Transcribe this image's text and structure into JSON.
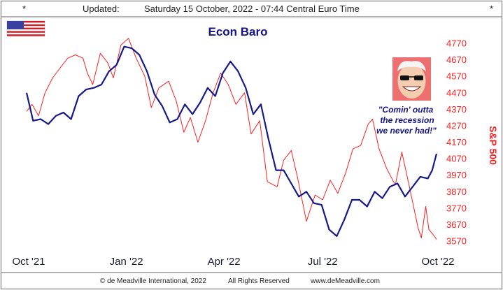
{
  "header": {
    "left_mark": "*",
    "updated_label": "Updated:",
    "timestamp": "Saturday 15 October, 2022 - 07:44 Central Euro Time",
    "right_mark": "*"
  },
  "footer": {
    "copyright": "© de Meadville International, 2022",
    "rights": "All Rights Reserved",
    "website": "www.deMeadville.com"
  },
  "flag_icon": "us-flag-icon",
  "avatar_icon": "cartoon-face-sunglasses-icon",
  "quote": {
    "line1": "\"Comin' outta",
    "line2": "the recession",
    "line3": "we never had!\""
  },
  "colors": {
    "baro": "#141a8c",
    "sp500": "#ff1f1f",
    "title": "#13148a",
    "frame": "#9a9a9a"
  },
  "chart_data": {
    "type": "line",
    "title": "Econ Baro",
    "ylabel": "S&P 500",
    "xlabel": "",
    "ylim": [
      3570,
      4770
    ],
    "yticks": [
      4770,
      4670,
      4570,
      4470,
      4370,
      4270,
      4170,
      4070,
      3970,
      3870,
      3770,
      3670,
      3570
    ],
    "xlim": [
      "2021-10-01",
      "2022-10-14"
    ],
    "xticks": [
      {
        "date": "2021-10-01",
        "label": "Oct '21"
      },
      {
        "date": "2022-01-01",
        "label": "Jan '22"
      },
      {
        "date": "2022-04-01",
        "label": "Apr '22"
      },
      {
        "date": "2022-07-01",
        "label": "Jul '22"
      },
      {
        "date": "2022-10-01",
        "label": "Oct '22"
      }
    ],
    "grid": false,
    "series": [
      {
        "role": "sp500",
        "color": "#ff1f1f",
        "axis": "right",
        "x": [
          "2021-10-01",
          "2021-10-06",
          "2021-10-12",
          "2021-10-18",
          "2021-10-25",
          "2021-11-02",
          "2021-11-08",
          "2021-11-15",
          "2021-11-22",
          "2021-11-26",
          "2021-12-01",
          "2021-12-08",
          "2021-12-15",
          "2021-12-20",
          "2021-12-27",
          "2022-01-03",
          "2022-01-10",
          "2022-01-18",
          "2022-01-24",
          "2022-01-31",
          "2022-02-09",
          "2022-02-16",
          "2022-02-23",
          "2022-03-01",
          "2022-03-08",
          "2022-03-15",
          "2022-03-22",
          "2022-03-29",
          "2022-04-05",
          "2022-04-12",
          "2022-04-20",
          "2022-04-26",
          "2022-05-04",
          "2022-05-11",
          "2022-05-20",
          "2022-05-26",
          "2022-06-02",
          "2022-06-08",
          "2022-06-16",
          "2022-06-24",
          "2022-07-01",
          "2022-07-08",
          "2022-07-15",
          "2022-07-22",
          "2022-07-29",
          "2022-08-05",
          "2022-08-12",
          "2022-08-16",
          "2022-08-22",
          "2022-08-29",
          "2022-09-06",
          "2022-09-12",
          "2022-09-19",
          "2022-09-27",
          "2022-09-30",
          "2022-10-04",
          "2022-10-07",
          "2022-10-12",
          "2022-10-14"
        ],
        "values": [
          4357,
          4400,
          4330,
          4470,
          4560,
          4630,
          4680,
          4700,
          4680,
          4590,
          4520,
          4710,
          4650,
          4560,
          4760,
          4800,
          4680,
          4570,
          4380,
          4500,
          4540,
          4420,
          4230,
          4320,
          4170,
          4300,
          4470,
          4590,
          4520,
          4400,
          4470,
          4220,
          4300,
          3930,
          3900,
          4060,
          4120,
          3950,
          3690,
          3850,
          3820,
          3940,
          3860,
          3980,
          4130,
          4150,
          4280,
          4310,
          4130,
          4010,
          3910,
          4110,
          3900,
          3650,
          3590,
          3780,
          3640,
          3600,
          3580
        ]
      },
      {
        "role": "baro",
        "color": "#141a8c",
        "axis": "left",
        "x": [
          "2021-10-01",
          "2021-10-07",
          "2021-10-14",
          "2021-10-21",
          "2021-10-28",
          "2021-11-04",
          "2021-11-11",
          "2021-11-18",
          "2021-11-25",
          "2021-12-02",
          "2021-12-09",
          "2021-12-16",
          "2021-12-23",
          "2021-12-30",
          "2022-01-06",
          "2022-01-13",
          "2022-01-20",
          "2022-01-27",
          "2022-02-03",
          "2022-02-10",
          "2022-02-17",
          "2022-02-24",
          "2022-03-03",
          "2022-03-10",
          "2022-03-17",
          "2022-03-24",
          "2022-03-31",
          "2022-04-07",
          "2022-04-14",
          "2022-04-21",
          "2022-04-28",
          "2022-05-05",
          "2022-05-12",
          "2022-05-19",
          "2022-05-26",
          "2022-06-02",
          "2022-06-09",
          "2022-06-16",
          "2022-06-23",
          "2022-06-30",
          "2022-07-07",
          "2022-07-14",
          "2022-07-21",
          "2022-07-28",
          "2022-08-04",
          "2022-08-11",
          "2022-08-18",
          "2022-08-25",
          "2022-09-01",
          "2022-09-08",
          "2022-09-15",
          "2022-09-22",
          "2022-09-29",
          "2022-10-06",
          "2022-10-10",
          "2022-10-14"
        ],
        "values": [
          4470,
          4300,
          4310,
          4280,
          4330,
          4350,
          4310,
          4450,
          4490,
          4500,
          4520,
          4600,
          4640,
          4750,
          4740,
          4700,
          4600,
          4460,
          4390,
          4290,
          4310,
          4400,
          4340,
          4410,
          4500,
          4450,
          4590,
          4660,
          4600,
          4500,
          4340,
          4400,
          4190,
          4000,
          4000,
          3920,
          3840,
          3870,
          3800,
          3790,
          3640,
          3600,
          3700,
          3820,
          3820,
          3780,
          3870,
          3830,
          3900,
          3920,
          3840,
          3900,
          3960,
          3950,
          4000,
          4100
        ]
      }
    ]
  }
}
